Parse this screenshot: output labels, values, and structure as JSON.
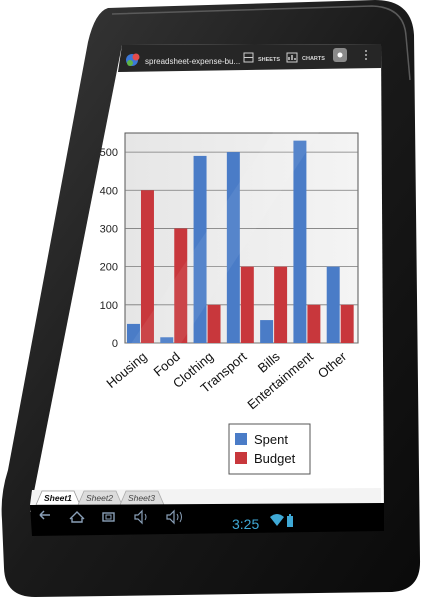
{
  "app": {
    "title": "spreadsheet-expense-bu...",
    "actions": [
      {
        "name": "sheets",
        "label": "SHEETS",
        "icon": "sheets-icon"
      },
      {
        "name": "charts",
        "label": "CHARTS",
        "icon": "charts-icon"
      }
    ],
    "action_icon": "settings-icon"
  },
  "chart_data": {
    "type": "bar",
    "categories": [
      "Housing",
      "Food",
      "Clothing",
      "Transport",
      "Bills",
      "Entertainment",
      "Other"
    ],
    "series": [
      {
        "name": "Spent",
        "color": "#4a7cc7",
        "values": [
          50,
          15,
          490,
          500,
          60,
          530,
          200
        ]
      },
      {
        "name": "Budget",
        "color": "#c8373c",
        "values": [
          400,
          300,
          100,
          200,
          200,
          100,
          100
        ]
      }
    ],
    "yticks": [
      "0",
      "100",
      "200",
      "300",
      "400",
      "500"
    ],
    "ylim": [
      0,
      550
    ],
    "grid": true,
    "legend": "bottom-right"
  },
  "sheet_tabs": [
    {
      "label": "Sheet1",
      "active": true
    },
    {
      "label": "Sheet2",
      "active": false
    },
    {
      "label": "Sheet3",
      "active": false
    }
  ],
  "status_bar": {
    "time": "3:25",
    "nav_icons": [
      "back-icon",
      "home-icon",
      "recent-apps-icon",
      "volume-down-icon",
      "volume-up-icon"
    ],
    "status_icons": [
      "wifi-icon",
      "battery-icon"
    ]
  }
}
